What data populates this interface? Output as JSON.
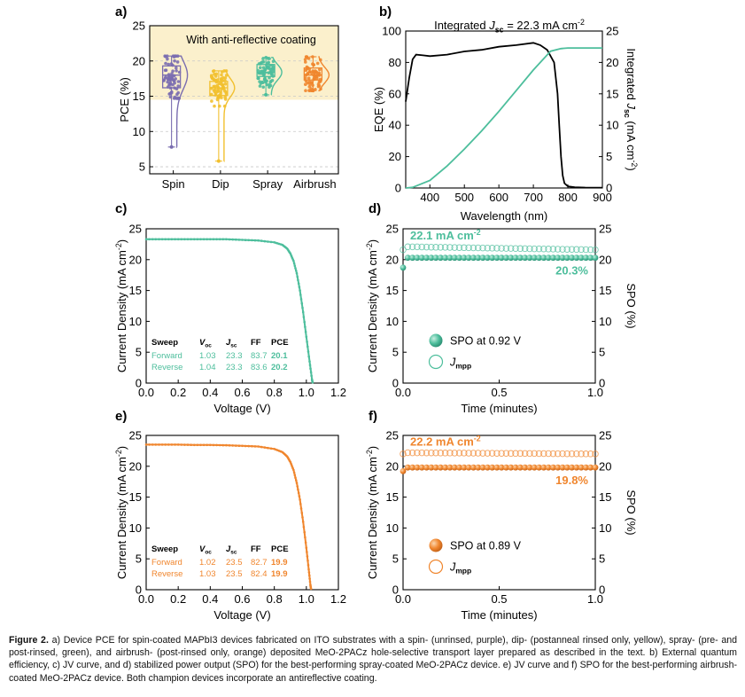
{
  "caption": {
    "label": "Figure 2.",
    "text": "a) Device PCE for spin-coated MAPbI3 devices fabricated on ITO substrates with a spin- (unrinsed, purple), dip- (postanneal rinsed only, yellow), spray- (pre- and post-rinsed, green), and airbrush- (post-rinsed only, orange) deposited MeO-2PACz hole-selective transport layer prepared as described in the text. b) External quantum efficiency, c) JV curve, and d) stabilized power output (SPO) for the best-performing spray-coated MeO-2PACz device. e) JV curve and f) SPO for the best-performing airbrush-coated MeO-2PACz device. Both champion devices incorporate an antireflective coating."
  },
  "colors": {
    "spin": "#7a6db0",
    "dip": "#f2c02e",
    "spray": "#4dbe9c",
    "airbrush": "#f0862e",
    "highlight": "#fbf0cc",
    "black": "#000000"
  },
  "chart_data": [
    {
      "panel": "a)",
      "type": "box-violin-scatter",
      "annotation": "With anti-reflective coating",
      "ylabel": "PCE (%)",
      "categories": [
        "Spin",
        "Dip",
        "Spray",
        "Airbrush"
      ],
      "ylim": [
        4,
        25
      ],
      "yticks": [
        5,
        10,
        15,
        20,
        25
      ],
      "boxes": [
        {
          "name": "Spin",
          "min": 7.8,
          "q1": 16.2,
          "median": 18.0,
          "q3": 19.3,
          "max": 20.7
        },
        {
          "name": "Dip",
          "min": 5.8,
          "q1": 15.1,
          "median": 16.2,
          "q3": 17.1,
          "max": 18.6
        },
        {
          "name": "Spray",
          "min": 15.2,
          "q1": 17.8,
          "median": 18.4,
          "q3": 19.5,
          "max": 20.5
        },
        {
          "name": "Airbrush",
          "min": 15.8,
          "q1": 17.3,
          "median": 18.0,
          "q3": 19.0,
          "max": 20.6
        }
      ]
    },
    {
      "panel": "b)",
      "type": "line",
      "title": "Integrated  Jsc = 22.3 mA cm-2",
      "xlabel": "Wavelength (nm)",
      "ylabel": "EQE (%)",
      "y2label": "Integrated Jsc (mA cm-2)",
      "xlim": [
        330,
        900
      ],
      "xticks": [
        400,
        500,
        600,
        700,
        800,
        900
      ],
      "ylim": [
        0,
        100
      ],
      "yticks": [
        0,
        20,
        40,
        60,
        80,
        100
      ],
      "y2lim": [
        0,
        25
      ],
      "y2ticks": [
        0,
        5,
        10,
        15,
        20,
        25
      ],
      "series": [
        {
          "axis": "left",
          "x": [
            330,
            340,
            350,
            360,
            380,
            400,
            450,
            500,
            550,
            600,
            650,
            700,
            720,
            740,
            760,
            770,
            775,
            780,
            785,
            790,
            800,
            820,
            850,
            880,
            900
          ],
          "y": [
            55,
            70,
            82,
            85,
            84.5,
            84,
            85,
            87,
            88,
            90,
            91,
            92.5,
            91,
            88,
            80,
            60,
            40,
            20,
            8,
            3,
            1,
            0.5,
            0.3,
            0.2,
            0.2
          ]
        },
        {
          "axis": "right",
          "x": [
            330,
            350,
            400,
            450,
            500,
            550,
            600,
            650,
            700,
            750,
            780,
            800,
            850,
            900
          ],
          "y": [
            0,
            0.1,
            1.2,
            3.5,
            6.2,
            9.1,
            12.2,
            15.5,
            18.8,
            21.8,
            22.2,
            22.3,
            22.3,
            22.3
          ]
        }
      ]
    },
    {
      "panel": "c)",
      "type": "line",
      "xlabel": "Voltage (V)",
      "ylabel": "Current Density (mA cm-2)",
      "xlim": [
        0,
        1.2
      ],
      "xticks": [
        "0.0",
        "0.2",
        "0.4",
        "0.6",
        "0.8",
        "1.0",
        "1.2"
      ],
      "ylim": [
        0,
        25
      ],
      "yticks": [
        0,
        5,
        10,
        15,
        20,
        25
      ],
      "series": [
        {
          "x": [
            0,
            0.1,
            0.2,
            0.3,
            0.4,
            0.5,
            0.6,
            0.7,
            0.8,
            0.85,
            0.88,
            0.9,
            0.92,
            0.94,
            0.96,
            0.98,
            1.0,
            1.02,
            1.035,
            1.04
          ],
          "y": [
            23.3,
            23.3,
            23.3,
            23.3,
            23.3,
            23.3,
            23.2,
            23.1,
            22.8,
            22.4,
            21.8,
            21.0,
            19.8,
            17.8,
            15.0,
            11.5,
            7.5,
            3.5,
            0.6,
            0
          ]
        }
      ],
      "table": {
        "headers": [
          "Sweep",
          "Voc",
          "Jsc",
          "FF",
          "PCE"
        ],
        "rows": [
          [
            "Forward",
            "1.03",
            "23.3",
            "83.7",
            "20.1"
          ],
          [
            "Reverse",
            "1.04",
            "23.3",
            "83.6",
            "20.2"
          ]
        ]
      }
    },
    {
      "panel": "d)",
      "type": "scatter",
      "xlabel": "Time (minutes)",
      "ylabel": "Current Density (mA cm-2)",
      "y2label": "SPO (%)",
      "xlim": [
        0,
        1.0
      ],
      "xticks": [
        "0.0",
        "0.5",
        "1.0"
      ],
      "ylim": [
        0,
        25
      ],
      "yticks": [
        0,
        5,
        10,
        15,
        20,
        25
      ],
      "y2lim": [
        0,
        25
      ],
      "y2ticks": [
        0,
        5,
        10,
        15,
        20,
        25
      ],
      "annotation_jmpp": "22.1 mA cm-2",
      "annotation_spo": "20.3%",
      "series": [
        {
          "name": "SPO at 0.92 V",
          "style": "filled",
          "first": 18.7,
          "value": 20.3
        },
        {
          "name": "Jmpp",
          "style": "open",
          "first": 21.6,
          "value": 22.1,
          "end": 21.6
        }
      ]
    },
    {
      "panel": "e)",
      "type": "line",
      "xlabel": "Voltage (V)",
      "ylabel": "Current Density (mA cm-2)",
      "xlim": [
        0,
        1.2
      ],
      "xticks": [
        "0.0",
        "0.2",
        "0.4",
        "0.6",
        "0.8",
        "1.0",
        "1.2"
      ],
      "ylim": [
        0,
        25
      ],
      "yticks": [
        0,
        5,
        10,
        15,
        20,
        25
      ],
      "series": [
        {
          "x": [
            0,
            0.1,
            0.2,
            0.3,
            0.4,
            0.5,
            0.6,
            0.7,
            0.8,
            0.85,
            0.88,
            0.9,
            0.92,
            0.94,
            0.96,
            0.98,
            1.0,
            1.015,
            1.025,
            1.03
          ],
          "y": [
            23.5,
            23.5,
            23.5,
            23.45,
            23.45,
            23.4,
            23.3,
            23.2,
            22.8,
            22.3,
            21.6,
            20.7,
            19.4,
            17.3,
            14.6,
            11.0,
            6.8,
            3.3,
            0.8,
            0
          ]
        }
      ],
      "table": {
        "headers": [
          "Sweep",
          "Voc",
          "Jsc",
          "FF",
          "PCE"
        ],
        "rows": [
          [
            "Forward",
            "1.02",
            "23.5",
            "82.7",
            "19.9"
          ],
          [
            "Reverse",
            "1.03",
            "23.5",
            "82.4",
            "19.9"
          ]
        ]
      }
    },
    {
      "panel": "f)",
      "type": "scatter",
      "xlabel": "Time (minutes)",
      "ylabel": "Current Density (mA cm-2)",
      "y2label": "SPO (%)",
      "xlim": [
        0,
        1.0
      ],
      "xticks": [
        "0.0",
        "0.5",
        "1.0"
      ],
      "ylim": [
        0,
        25
      ],
      "yticks": [
        0,
        5,
        10,
        15,
        20,
        25
      ],
      "y2lim": [
        0,
        25
      ],
      "y2ticks": [
        0,
        5,
        10,
        15,
        20,
        25
      ],
      "annotation_jmpp": "22.2 mA cm-2",
      "annotation_spo": "19.8%",
      "series": [
        {
          "name": "SPO at 0.89 V",
          "style": "filled",
          "first": 19.2,
          "value": 19.8
        },
        {
          "name": "Jmpp",
          "style": "open",
          "first": 22.0,
          "value": 22.2,
          "end": 22.0
        }
      ]
    }
  ]
}
